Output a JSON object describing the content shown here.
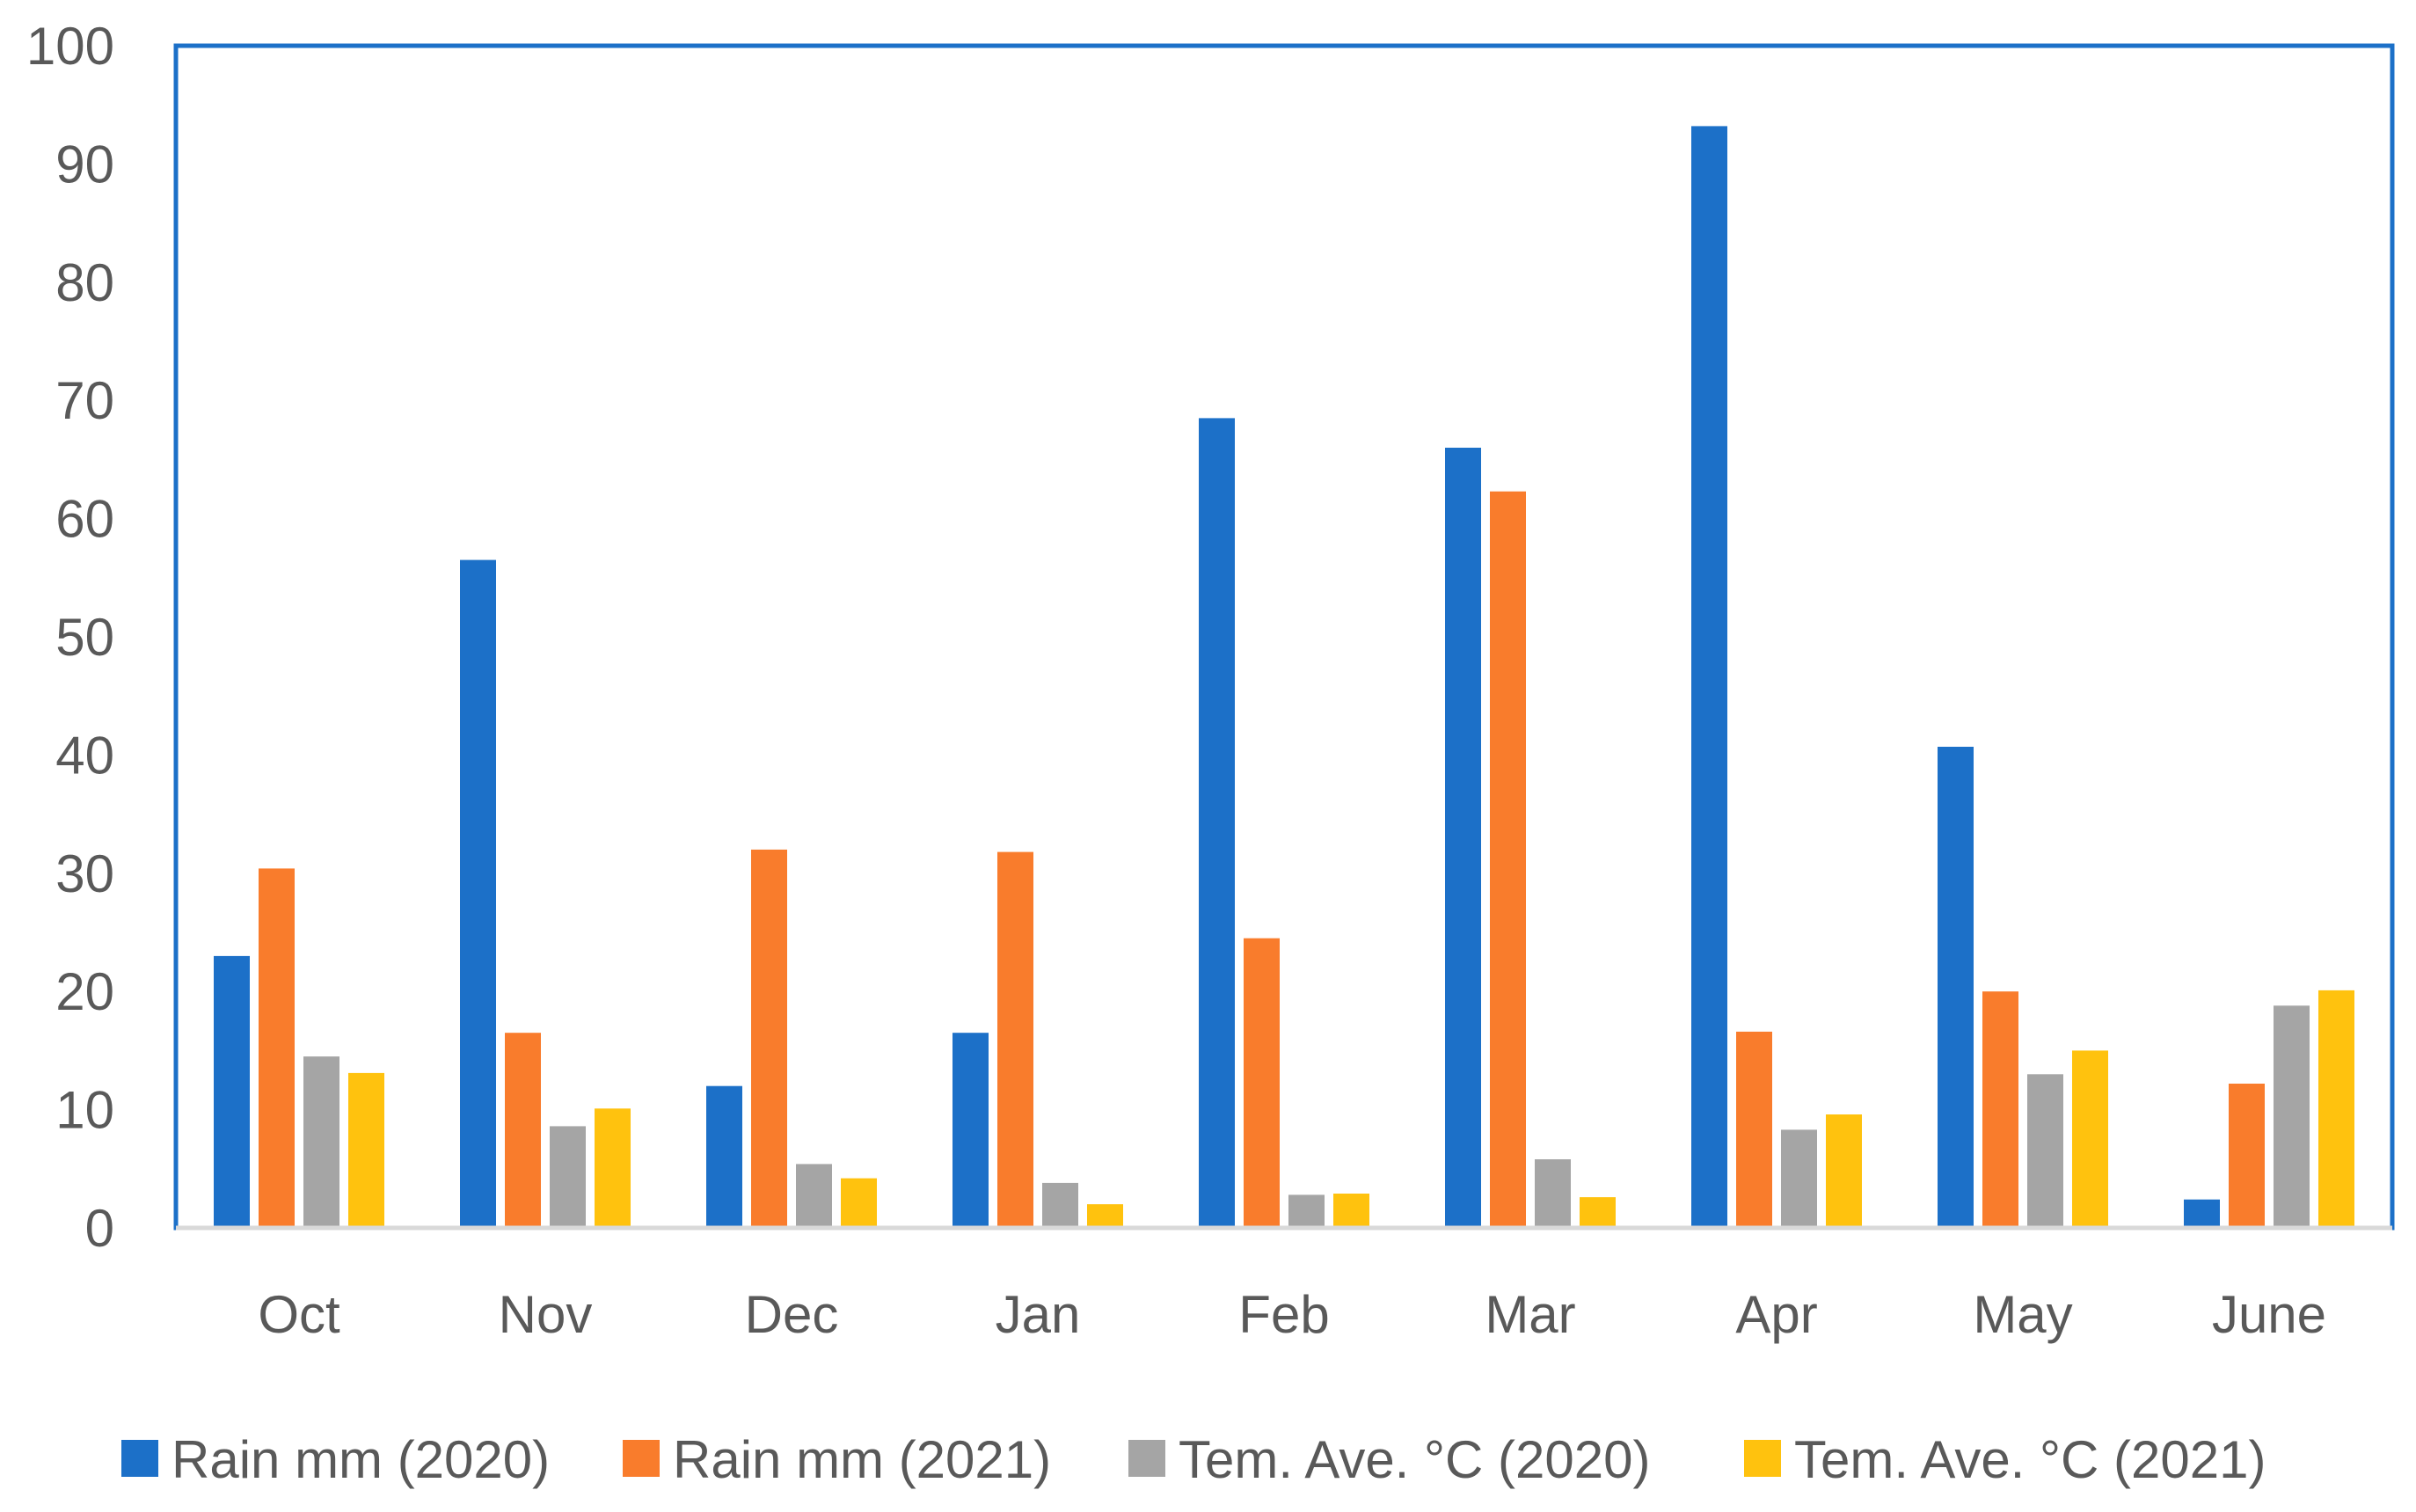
{
  "chart_data": {
    "type": "bar",
    "categories": [
      "Oct",
      "Nov",
      "Dec",
      "Jan",
      "Feb",
      "Mar",
      "Apr",
      "May",
      "June"
    ],
    "series": [
      {
        "name": "Rain mm (2020)",
        "color": "#1c70c8",
        "values": [
          23,
          56.5,
          12,
          16.5,
          68.5,
          66,
          93.2,
          40.7,
          2.4
        ]
      },
      {
        "name": "Rain mm (2021)",
        "color": "#f97c2c",
        "values": [
          30.4,
          16.5,
          32,
          31.8,
          24.5,
          62.3,
          16.6,
          20,
          12.2
        ]
      },
      {
        "name": "Tem. Ave. °C (2020)",
        "color": "#a5a5a5",
        "values": [
          14.5,
          8.6,
          5.4,
          3.8,
          2.8,
          5.8,
          8.3,
          13,
          18.8
        ]
      },
      {
        "name": "Tem. Ave. °C (2021)",
        "color": "#ffc20e",
        "values": [
          13.1,
          10.1,
          4.2,
          2,
          2.9,
          2.6,
          9.6,
          15,
          20.1
        ]
      }
    ],
    "yticks": [
      "0",
      "10",
      "20",
      "30",
      "40",
      "50",
      "60",
      "70",
      "80",
      "90",
      "100"
    ],
    "ylim": [
      0,
      100
    ],
    "grid": false,
    "legend_position": "bottom",
    "frame_color": "#1c70c8",
    "axis_color": "#d9d9d9"
  }
}
